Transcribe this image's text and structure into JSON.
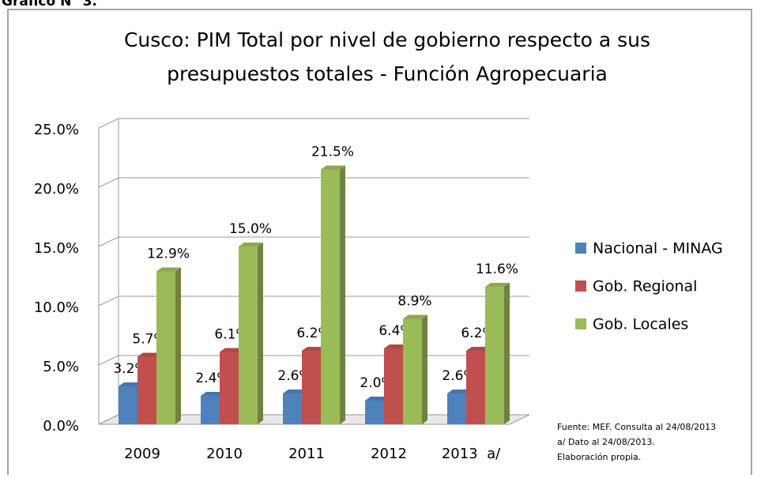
{
  "heading": "Gráfico N° 3.",
  "chart_data": {
    "type": "bar3d",
    "title": [
      "Cusco: PIM Total por nivel de gobierno respecto a sus",
      "presupuestos totales - Función Agropecuaria"
    ],
    "categories": [
      "2009",
      "2010",
      "2011",
      "2012",
      "2013  a/"
    ],
    "series": [
      {
        "name": "Nacional - MINAG",
        "color": "#4f81bd",
        "values": [
          3.2,
          2.4,
          2.6,
          2.0,
          2.6
        ],
        "value_labels": [
          "3.2%",
          "2.4%",
          "2.6%",
          "2.0%",
          "2.6%"
        ]
      },
      {
        "name": "Gob. Regional",
        "color": "#c0504d",
        "values": [
          5.7,
          6.1,
          6.2,
          6.4,
          6.2
        ],
        "value_labels": [
          "5.7%",
          "6.1%",
          "6.2%",
          "6.4%",
          "6.2%"
        ]
      },
      {
        "name": "Gob. Locales",
        "color": "#9bbb59",
        "values": [
          12.9,
          15.0,
          21.5,
          8.9,
          11.6
        ],
        "value_labels": [
          "12.9%",
          "15.0%",
          "21.5%",
          "8.9%",
          "11.6%"
        ]
      }
    ],
    "ylim": [
      0,
      25
    ],
    "yticks": [
      {
        "value": 0,
        "label": "0.0%"
      },
      {
        "value": 5,
        "label": "5.0%"
      },
      {
        "value": 10,
        "label": "10.0%"
      },
      {
        "value": 15,
        "label": "15.0%"
      },
      {
        "value": 20,
        "label": "20.0%"
      },
      {
        "value": 25,
        "label": "25.0%"
      }
    ],
    "grid": true,
    "legend": "right",
    "notes": [
      "Fuente: MEF. Consulta al 24/08/2013",
      "a/ Dato al 24/08/2013.",
      "Elaboración propia."
    ]
  }
}
